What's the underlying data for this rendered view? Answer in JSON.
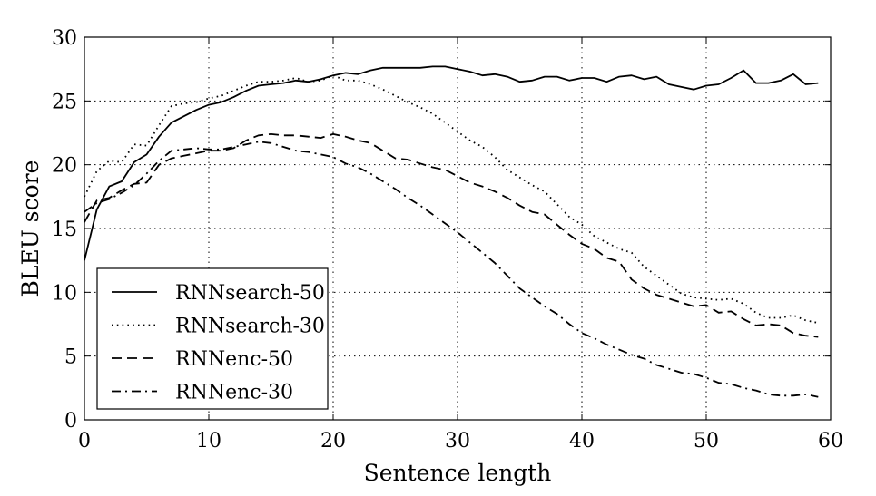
{
  "chart_data": {
    "type": "line",
    "title": "",
    "xlabel": "Sentence length",
    "ylabel": "BLEU score",
    "xlim": [
      0,
      60
    ],
    "ylim": [
      0,
      30
    ],
    "xticks": [
      0,
      10,
      20,
      30,
      40,
      50,
      60
    ],
    "yticks": [
      0,
      5,
      10,
      15,
      20,
      25,
      30
    ],
    "grid": true,
    "legend_position": "bottom-left",
    "series": [
      {
        "name": "RNNsearch-50",
        "style": "solid",
        "x": [
          0,
          1,
          2,
          3,
          4,
          5,
          6,
          7,
          8,
          9,
          10,
          11,
          12,
          13,
          14,
          15,
          16,
          17,
          18,
          19,
          20,
          21,
          22,
          23,
          24,
          25,
          26,
          27,
          28,
          29,
          30,
          31,
          32,
          33,
          34,
          35,
          36,
          37,
          38,
          39,
          40,
          41,
          42,
          43,
          44,
          45,
          46,
          47,
          48,
          49,
          50,
          51,
          52,
          53,
          54,
          55,
          56,
          57,
          58,
          59
        ],
        "values": [
          12.5,
          16.5,
          18.3,
          18.7,
          20.2,
          20.8,
          22.2,
          23.3,
          23.8,
          24.3,
          24.7,
          24.9,
          25.3,
          25.8,
          26.2,
          26.3,
          26.4,
          26.6,
          26.5,
          26.7,
          27.0,
          27.2,
          27.1,
          27.4,
          27.6,
          27.6,
          27.6,
          27.6,
          27.7,
          27.7,
          27.5,
          27.3,
          27.0,
          27.1,
          26.9,
          26.5,
          26.6,
          26.9,
          26.9,
          26.6,
          26.8,
          26.8,
          26.5,
          26.9,
          27.0,
          26.7,
          26.9,
          26.3,
          26.1,
          25.9,
          26.2,
          26.3,
          26.8,
          27.4,
          26.4,
          26.4,
          26.6,
          27.1,
          26.3,
          26.4
        ]
      },
      {
        "name": "RNNsearch-30",
        "style": "dotted",
        "x": [
          0,
          1,
          2,
          3,
          4,
          5,
          6,
          7,
          8,
          9,
          10,
          11,
          12,
          13,
          14,
          15,
          16,
          17,
          18,
          19,
          20,
          21,
          22,
          23,
          24,
          25,
          26,
          27,
          28,
          29,
          30,
          31,
          32,
          33,
          34,
          35,
          36,
          37,
          38,
          39,
          40,
          41,
          42,
          43,
          44,
          45,
          46,
          47,
          48,
          49,
          50,
          51,
          52,
          53,
          54,
          55,
          56,
          57,
          58,
          59
        ],
        "values": [
          17.5,
          19.5,
          20.3,
          20.2,
          21.6,
          21.5,
          23.1,
          24.6,
          24.8,
          24.9,
          25.2,
          25.4,
          25.8,
          26.2,
          26.5,
          26.5,
          26.6,
          26.8,
          26.5,
          26.6,
          27.0,
          26.6,
          26.6,
          26.3,
          25.9,
          25.4,
          24.9,
          24.5,
          24.0,
          23.3,
          22.6,
          21.9,
          21.4,
          20.6,
          19.6,
          19.0,
          18.4,
          17.9,
          16.9,
          15.9,
          15.3,
          14.4,
          13.9,
          13.4,
          13.1,
          12.0,
          11.3,
          10.6,
          9.9,
          9.6,
          9.5,
          9.4,
          9.5,
          9.1,
          8.4,
          8.0,
          8.0,
          8.2,
          7.8,
          7.6
        ]
      },
      {
        "name": "RNNenc-50",
        "style": "dashed",
        "x": [
          0,
          1,
          2,
          3,
          4,
          5,
          6,
          7,
          8,
          9,
          10,
          11,
          12,
          13,
          14,
          15,
          16,
          17,
          18,
          19,
          20,
          21,
          22,
          23,
          24,
          25,
          26,
          27,
          28,
          29,
          30,
          31,
          32,
          33,
          34,
          35,
          36,
          37,
          38,
          39,
          40,
          41,
          42,
          43,
          44,
          45,
          46,
          47,
          48,
          49,
          50,
          51,
          52,
          53,
          54,
          55,
          56,
          57,
          58,
          59
        ],
        "values": [
          15.5,
          17.2,
          17.4,
          18.0,
          18.5,
          18.6,
          20.0,
          20.5,
          20.7,
          20.9,
          21.1,
          21.1,
          21.3,
          21.9,
          22.3,
          22.4,
          22.3,
          22.3,
          22.2,
          22.1,
          22.4,
          22.2,
          21.9,
          21.7,
          21.1,
          20.5,
          20.4,
          20.1,
          19.8,
          19.6,
          19.1,
          18.6,
          18.3,
          17.9,
          17.4,
          16.8,
          16.3,
          16.1,
          15.3,
          14.5,
          13.8,
          13.4,
          12.7,
          12.4,
          11.0,
          10.3,
          9.8,
          9.5,
          9.2,
          8.9,
          9.0,
          8.4,
          8.5,
          7.9,
          7.4,
          7.5,
          7.4,
          6.8,
          6.6,
          6.5
        ]
      },
      {
        "name": "RNNenc-30",
        "style": "dashdot",
        "x": [
          0,
          1,
          2,
          3,
          4,
          5,
          6,
          7,
          8,
          9,
          10,
          11,
          12,
          13,
          14,
          15,
          16,
          17,
          18,
          19,
          20,
          21,
          22,
          23,
          24,
          25,
          26,
          27,
          28,
          29,
          30,
          31,
          32,
          33,
          34,
          35,
          36,
          37,
          38,
          39,
          40,
          41,
          42,
          43,
          44,
          45,
          46,
          47,
          48,
          49,
          50,
          51,
          52,
          53,
          54,
          55,
          56,
          57,
          58,
          59
        ],
        "values": [
          16.3,
          17.0,
          17.3,
          17.8,
          18.4,
          19.3,
          20.3,
          21.1,
          21.2,
          21.3,
          21.2,
          21.2,
          21.4,
          21.6,
          21.8,
          21.7,
          21.4,
          21.1,
          21.0,
          20.8,
          20.6,
          20.1,
          19.8,
          19.3,
          18.7,
          18.1,
          17.4,
          16.8,
          16.1,
          15.4,
          14.7,
          13.9,
          13.1,
          12.3,
          11.3,
          10.3,
          9.6,
          8.9,
          8.3,
          7.5,
          6.8,
          6.4,
          5.9,
          5.5,
          5.1,
          4.8,
          4.3,
          4.0,
          3.7,
          3.6,
          3.3,
          2.9,
          2.8,
          2.5,
          2.3,
          2.0,
          1.9,
          1.9,
          2.0,
          1.8
        ]
      }
    ]
  }
}
